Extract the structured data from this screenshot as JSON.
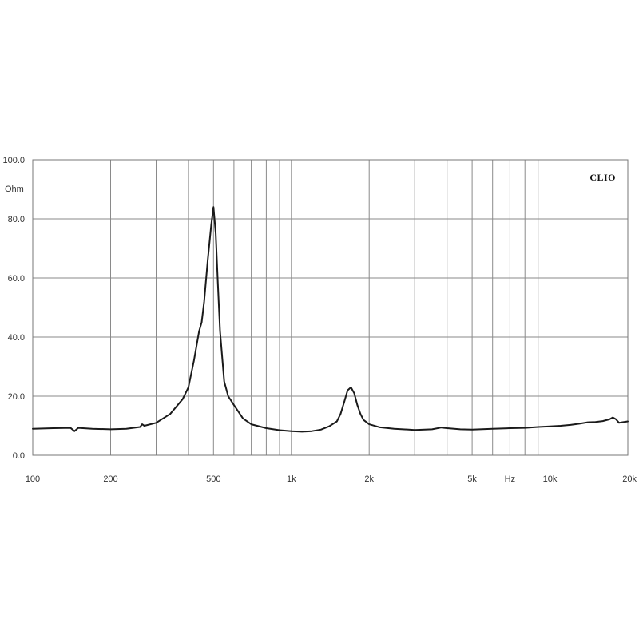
{
  "chart_data": {
    "type": "line",
    "title": "",
    "brand_label": "CLIO",
    "xlabel": "Hz",
    "ylabel": "Ohm",
    "x_scale": "log",
    "xlim": [
      100,
      20000
    ],
    "ylim": [
      0,
      100
    ],
    "grid": true,
    "x_tick_labels": [
      {
        "value": 100,
        "label": "100"
      },
      {
        "value": 200,
        "label": "200"
      },
      {
        "value": 500,
        "label": "500"
      },
      {
        "value": 1000,
        "label": "1k"
      },
      {
        "value": 2000,
        "label": "2k"
      },
      {
        "value": 5000,
        "label": "5k"
      },
      {
        "value": 10000,
        "label": "10k"
      },
      {
        "value": 20000,
        "label": "20k"
      }
    ],
    "x_gridlines": [
      200,
      300,
      400,
      500,
      600,
      700,
      800,
      900,
      1000,
      2000,
      3000,
      4000,
      5000,
      6000,
      7000,
      8000,
      9000,
      10000
    ],
    "y_tick_labels": [
      {
        "value": 0,
        "label": "0.0"
      },
      {
        "value": 20,
        "label": "20.0"
      },
      {
        "value": 40,
        "label": "40.0"
      },
      {
        "value": 60,
        "label": "60.0"
      },
      {
        "value": 80,
        "label": "80.0"
      },
      {
        "value": 100,
        "label": "100.0"
      }
    ],
    "series": [
      {
        "color": "#1a1a1a",
        "x": [
          100,
          120,
          140,
          145,
          150,
          170,
          200,
          230,
          260,
          265,
          270,
          300,
          340,
          380,
          400,
          420,
          440,
          450,
          460,
          475,
          490,
          500,
          510,
          520,
          530,
          550,
          570,
          600,
          650,
          700,
          800,
          900,
          1000,
          1100,
          1200,
          1300,
          1400,
          1500,
          1550,
          1600,
          1650,
          1700,
          1750,
          1800,
          1850,
          1900,
          2000,
          2200,
          2500,
          3000,
          3500,
          3800,
          4000,
          4500,
          5000,
          6000,
          7000,
          8000,
          9000,
          10000,
          11000,
          12000,
          13000,
          14000,
          15000,
          16000,
          17000,
          17500,
          18000,
          18500,
          19000,
          20000
        ],
        "y": [
          9,
          9.2,
          9.3,
          8.2,
          9.3,
          9,
          8.8,
          9,
          9.6,
          10.5,
          10,
          11,
          14,
          19,
          23,
          32,
          42,
          45,
          52,
          66,
          78,
          84,
          75,
          58,
          42,
          25,
          20,
          17,
          12.5,
          10.5,
          9.2,
          8.5,
          8.2,
          8,
          8.2,
          8.7,
          9.8,
          11.5,
          14,
          18,
          22,
          23,
          21,
          17,
          14,
          12,
          10.5,
          9.5,
          9,
          8.6,
          8.8,
          9.4,
          9.2,
          8.8,
          8.7,
          9,
          9.2,
          9.3,
          9.6,
          9.8,
          10,
          10.3,
          10.7,
          11.2,
          11.3,
          11.6,
          12.2,
          12.8,
          12.2,
          11,
          11.2,
          11.5
        ]
      }
    ]
  }
}
